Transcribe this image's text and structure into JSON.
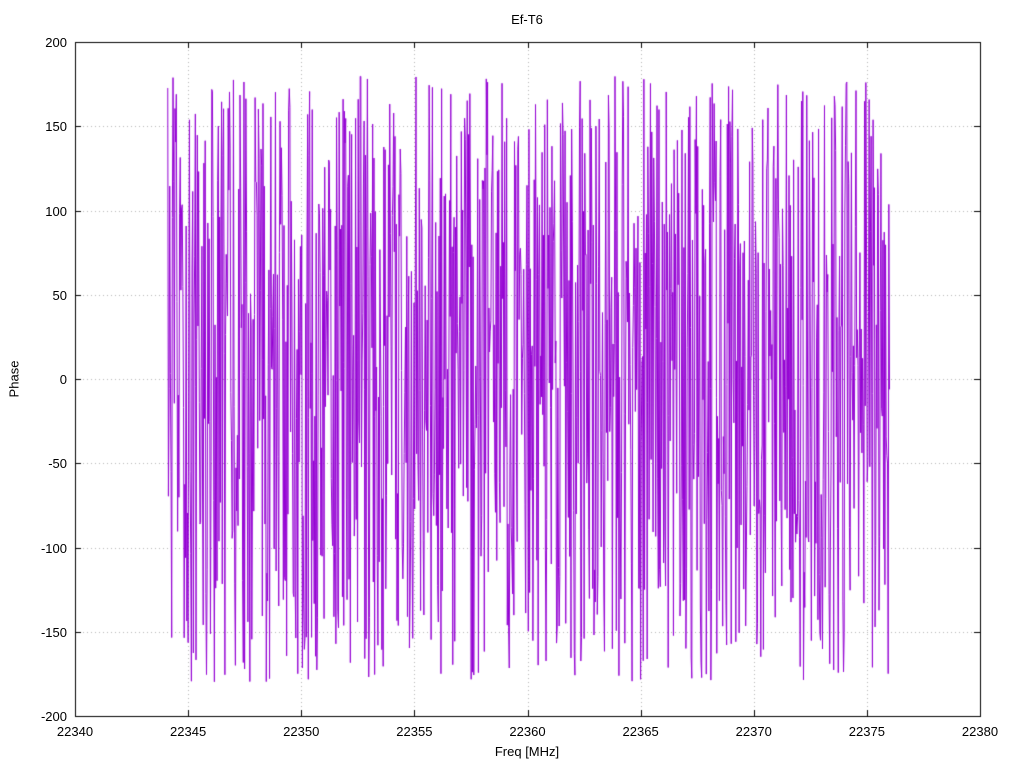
{
  "chart_data": {
    "type": "line",
    "title": "Ef-T6",
    "xlabel": "Freq [MHz]",
    "ylabel": "Phase",
    "xlim": [
      22340,
      22380
    ],
    "ylim": [
      -200,
      200
    ],
    "x_ticks": [
      22340,
      22345,
      22350,
      22355,
      22360,
      22365,
      22370,
      22375,
      22380
    ],
    "y_ticks": [
      -200,
      -150,
      -100,
      -50,
      0,
      50,
      100,
      150,
      200
    ],
    "grid": true,
    "grid_style": "dotted",
    "grid_color": "#b5b5b5",
    "border_color": "#000000",
    "line_color": "#9400d3",
    "legend": "none",
    "series": [
      {
        "name": "Ef-T6",
        "description": "Wrapped interferometric phase vs frequency; dense noise-like trace uniformly filling -180 to +180 degrees between 22344.1 and 22376.0 MHz",
        "x_start": 22344.1,
        "x_end": 22376.0,
        "n_points": 1100,
        "y_min": -180,
        "y_max": 180,
        "distribution": "uniform",
        "seed": 12345
      }
    ]
  }
}
